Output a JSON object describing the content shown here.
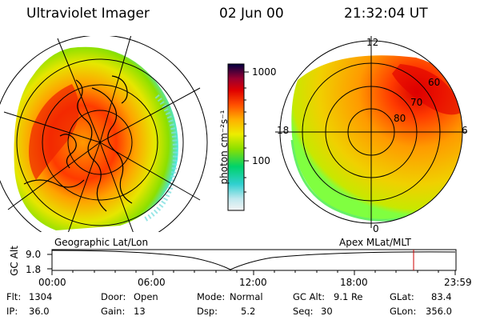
{
  "header": {
    "title": "Ultraviolet Imager",
    "date": "02 Jun 00",
    "time": "21:32:04 UT"
  },
  "colorbar": {
    "label": "photon cm⁻²s⁻¹",
    "ticks": [
      "1000",
      "100"
    ]
  },
  "polar_plot": {
    "mlt_top": "12",
    "mlt_left": "18",
    "mlt_right": "6",
    "mlt_bottom": "0",
    "lat_labels": [
      "60",
      "70",
      "80"
    ]
  },
  "map_labels": {
    "left": "Geographic Lat/Lon",
    "right": "Apex MLat/MLT"
  },
  "altitude_plot": {
    "ylabel": "GC Alt",
    "yticks": [
      "9.0",
      "1.8"
    ],
    "xticks": [
      "00:00",
      "06:00",
      "12:00",
      "18:00",
      "23:59"
    ]
  },
  "footer": {
    "flt_label": "Flt:",
    "flt_value": "1304",
    "ip_label": "IP:",
    "ip_value": "36.0",
    "door_label": "Door:",
    "door_value": "Open",
    "gain_label": "Gain:",
    "gain_value": "13",
    "mode_label": "Mode:",
    "mode_value": "Normal",
    "dsp_label": "Dsp:",
    "dsp_value": "5.2",
    "gcalt_label": "GC Alt:",
    "gcalt_value": "9.1 Re",
    "seq_label": "Seq:",
    "seq_value": "30",
    "glat_label": "GLat:",
    "glat_value": "83.4",
    "glon_label": "GLon:",
    "glon_value": "356.0"
  },
  "colors": {
    "background": "#ffffff",
    "marker": "#cc0000"
  }
}
